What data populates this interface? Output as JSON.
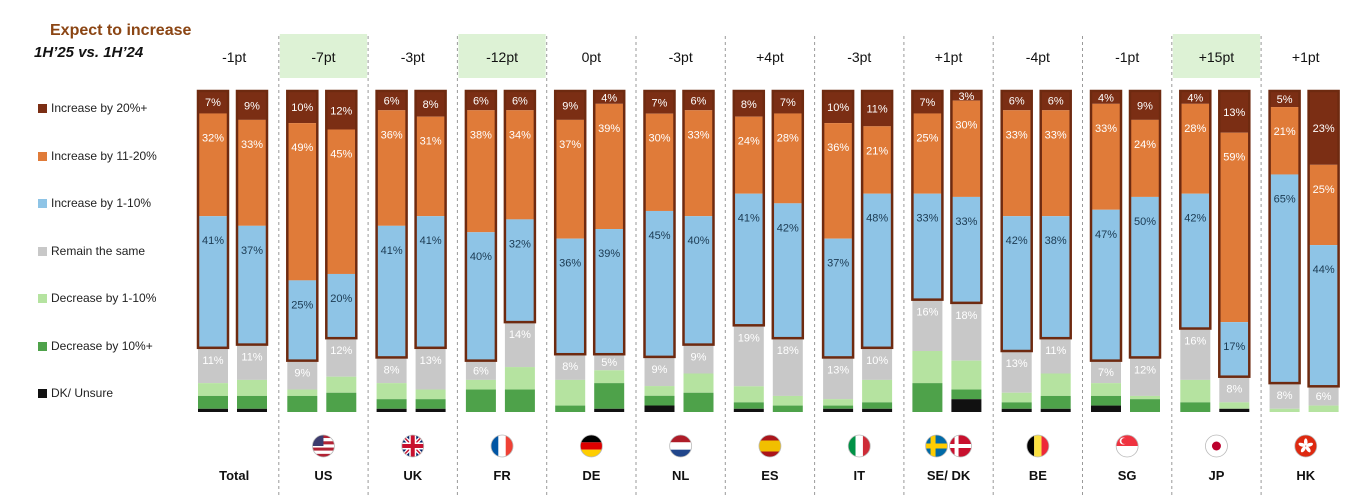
{
  "header": {
    "title": "Expect to increase",
    "subtitle": "1H’25 vs. 1H’24"
  },
  "colors": {
    "increase_20_plus": "#7B2E14",
    "increase_11_20": "#E07B39",
    "increase_1_10": "#8EC4E6",
    "remain_same": "#C8C8C8",
    "decrease_1_10": "#B5E3A0",
    "decrease_10_plus": "#4EA24A",
    "dk_unsure": "#111111",
    "outline": "#6E2A10",
    "highlight": "#DDF2D5"
  },
  "chart_data": {
    "type": "bar",
    "stacked": true,
    "y_range": [
      0,
      100
    ],
    "legend_position": "left",
    "series_names": [
      "Increase by 20%+",
      "Increase by 11-20%",
      "Increase by 1-10%",
      "Remain the same",
      "Decrease by 1-10%",
      "Decrease by 10%+",
      "DK/ Unsure"
    ],
    "groups": [
      {
        "country": "Total",
        "flag": "",
        "change": "-1pt",
        "highlight": false,
        "bars": [
          {
            "values": [
              7,
              32,
              41,
              11,
              4,
              4,
              1
            ],
            "labels": [
              "7%",
              "32%",
              "41%",
              "11%",
              "",
              "",
              ""
            ]
          },
          {
            "values": [
              9,
              33,
              37,
              11,
              5,
              4,
              1
            ],
            "labels": [
              "9%",
              "33%",
              "37%",
              "11%",
              "",
              "",
              ""
            ]
          }
        ]
      },
      {
        "country": "US",
        "flag": "us-flag-icon",
        "change": "-7pt",
        "highlight": true,
        "bars": [
          {
            "values": [
              10,
              49,
              25,
              9,
              2,
              5,
              0
            ],
            "labels": [
              "10%",
              "49%",
              "25%",
              "9%",
              "",
              "",
              ""
            ]
          },
          {
            "values": [
              12,
              45,
              20,
              12,
              5,
              6,
              0
            ],
            "labels": [
              "12%",
              "45%",
              "20%",
              "12%",
              "",
              "",
              ""
            ]
          }
        ]
      },
      {
        "country": "UK",
        "flag": "uk-flag-icon",
        "change": "-3pt",
        "highlight": false,
        "bars": [
          {
            "values": [
              6,
              36,
              41,
              8,
              5,
              3,
              1
            ],
            "labels": [
              "6%",
              "36%",
              "41%",
              "8%",
              "",
              "",
              ""
            ]
          },
          {
            "values": [
              8,
              31,
              41,
              13,
              3,
              3,
              1
            ],
            "labels": [
              "8%",
              "31%",
              "41%",
              "13%",
              "",
              "",
              ""
            ]
          }
        ]
      },
      {
        "country": "FR",
        "flag": "fr-flag-icon",
        "change": "-12pt",
        "highlight": true,
        "bars": [
          {
            "values": [
              6,
              38,
              40,
              6,
              3,
              7,
              0
            ],
            "labels": [
              "6%",
              "38%",
              "40%",
              "6%",
              "",
              "",
              ""
            ]
          },
          {
            "values": [
              6,
              34,
              32,
              14,
              7,
              7,
              0
            ],
            "labels": [
              "6%",
              "34%",
              "32%",
              "14%",
              "",
              "",
              ""
            ]
          }
        ]
      },
      {
        "country": "DE",
        "flag": "de-flag-icon",
        "change": "0pt",
        "highlight": false,
        "bars": [
          {
            "values": [
              9,
              37,
              36,
              8,
              8,
              2,
              0
            ],
            "labels": [
              "9%",
              "37%",
              "36%",
              "8%",
              "",
              "",
              ""
            ]
          },
          {
            "values": [
              4,
              39,
              39,
              5,
              4,
              8,
              1
            ],
            "labels": [
              "4%",
              "39%",
              "39%",
              "5%",
              "",
              "",
              ""
            ]
          }
        ]
      },
      {
        "country": "NL",
        "flag": "nl-flag-icon",
        "change": "-3pt",
        "highlight": false,
        "bars": [
          {
            "values": [
              7,
              30,
              45,
              9,
              3,
              3,
              2
            ],
            "labels": [
              "7%",
              "30%",
              "45%",
              "9%",
              "",
              "",
              ""
            ]
          },
          {
            "values": [
              6,
              33,
              40,
              9,
              6,
              6,
              0
            ],
            "labels": [
              "6%",
              "33%",
              "40%",
              "9%",
              "",
              "",
              ""
            ]
          }
        ]
      },
      {
        "country": "ES",
        "flag": "es-flag-icon",
        "change": "+4pt",
        "highlight": false,
        "bars": [
          {
            "values": [
              8,
              24,
              41,
              19,
              5,
              2,
              1
            ],
            "labels": [
              "8%",
              "24%",
              "41%",
              "19%",
              "",
              "",
              ""
            ]
          },
          {
            "values": [
              7,
              28,
              42,
              18,
              3,
              2,
              0
            ],
            "labels": [
              "7%",
              "28%",
              "42%",
              "18%",
              "",
              "",
              ""
            ]
          }
        ]
      },
      {
        "country": "IT",
        "flag": "it-flag-icon",
        "change": "-3pt",
        "highlight": false,
        "bars": [
          {
            "values": [
              10,
              36,
              37,
              13,
              2,
              1,
              1
            ],
            "labels": [
              "10%",
              "36%",
              "37%",
              "13%",
              "",
              "",
              ""
            ]
          },
          {
            "values": [
              11,
              21,
              48,
              10,
              7,
              2,
              1
            ],
            "labels": [
              "11%",
              "21%",
              "48%",
              "10%",
              "",
              "",
              ""
            ]
          }
        ]
      },
      {
        "country": "SE/ DK",
        "flag": "se-dk-flag-icon",
        "change": "+1pt",
        "highlight": false,
        "bars": [
          {
            "values": [
              7,
              25,
              33,
              16,
              10,
              9,
              0
            ],
            "labels": [
              "7%",
              "25%",
              "33%",
              "16%",
              "",
              "",
              ""
            ]
          },
          {
            "values": [
              3,
              30,
              33,
              18,
              9,
              3,
              4
            ],
            "labels": [
              "3%",
              "30%",
              "33%",
              "18%",
              "",
              "",
              ""
            ]
          }
        ]
      },
      {
        "country": "BE",
        "flag": "be-flag-icon",
        "change": "-4pt",
        "highlight": false,
        "bars": [
          {
            "values": [
              6,
              33,
              42,
              13,
              3,
              2,
              1
            ],
            "labels": [
              "6%",
              "33%",
              "42%",
              "13%",
              "",
              "",
              ""
            ]
          },
          {
            "values": [
              6,
              33,
              38,
              11,
              7,
              4,
              1
            ],
            "labels": [
              "6%",
              "33%",
              "38%",
              "11%",
              "",
              "",
              ""
            ]
          }
        ]
      },
      {
        "country": "SG",
        "flag": "sg-flag-icon",
        "change": "-1pt",
        "highlight": false,
        "bars": [
          {
            "values": [
              4,
              33,
              47,
              7,
              4,
              3,
              2
            ],
            "labels": [
              "4%",
              "33%",
              "47%",
              "7%",
              "",
              "",
              ""
            ]
          },
          {
            "values": [
              9,
              24,
              50,
              12,
              1,
              4,
              0
            ],
            "labels": [
              "9%",
              "24%",
              "50%",
              "12%",
              "",
              "",
              ""
            ]
          }
        ]
      },
      {
        "country": "JP",
        "flag": "jp-flag-icon",
        "change": "+15pt",
        "highlight": true,
        "bars": [
          {
            "values": [
              4,
              28,
              42,
              16,
              7,
              3,
              0
            ],
            "labels": [
              "4%",
              "28%",
              "42%",
              "16%",
              "",
              "",
              ""
            ]
          },
          {
            "values": [
              13,
              59,
              17,
              8,
              2,
              0,
              1
            ],
            "labels": [
              "13%",
              "59%",
              "17%",
              "8%",
              "",
              "",
              ""
            ]
          }
        ]
      },
      {
        "country": "HK",
        "flag": "hk-flag-icon",
        "change": "+1pt",
        "highlight": false,
        "bars": [
          {
            "values": [
              5,
              21,
              65,
              8,
              1,
              0,
              0
            ],
            "labels": [
              "5%",
              "21%",
              "65%",
              "8%",
              "",
              "",
              ""
            ]
          },
          {
            "values": [
              23,
              25,
              44,
              6,
              2,
              0,
              0
            ],
            "labels": [
              "23%",
              "25%",
              "44%",
              "6%",
              "",
              "",
              ""
            ]
          }
        ]
      }
    ]
  }
}
